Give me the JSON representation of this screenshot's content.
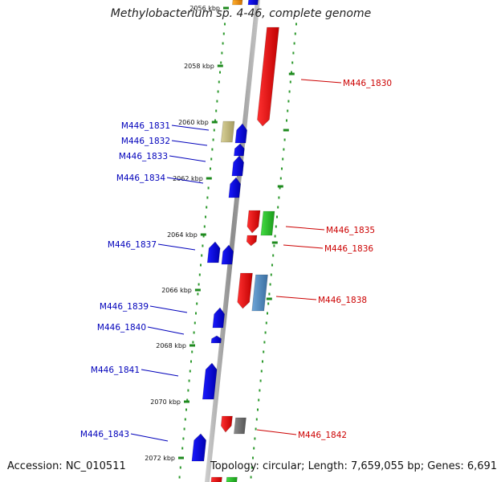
{
  "title": "Methylobacterium sp. 4-46, complete genome",
  "footer": {
    "accession": "Accession: NC_010511",
    "stats": "Topology: circular; Length: 7,659,055 bp; Genes: 6,691"
  },
  "colors": {
    "backbone": "#9e9e9e",
    "tick_dots": "#2e9a2e",
    "forward_label": "#cc0000",
    "reverse_label": "#0000bb"
  },
  "ticks": [
    "2056 kbp",
    "2058 kbp",
    "2060 kbp",
    "2062 kbp",
    "2064 kbp",
    "2066 kbp",
    "2068 kbp",
    "2070 kbp",
    "2072 kbp"
  ],
  "genes": [
    {
      "id": "M446_1830",
      "strand": "+"
    },
    {
      "id": "M446_1831",
      "strand": "-"
    },
    {
      "id": "M446_1832",
      "strand": "-"
    },
    {
      "id": "M446_1833",
      "strand": "-"
    },
    {
      "id": "M446_1834",
      "strand": "-"
    },
    {
      "id": "M446_1835",
      "strand": "+"
    },
    {
      "id": "M446_1836",
      "strand": "+"
    },
    {
      "id": "M446_1837",
      "strand": "-"
    },
    {
      "id": "M446_1838",
      "strand": "+"
    },
    {
      "id": "M446_1839",
      "strand": "-"
    },
    {
      "id": "M446_1840",
      "strand": "-"
    },
    {
      "id": "M446_1841",
      "strand": "-"
    },
    {
      "id": "M446_1842",
      "strand": "+"
    },
    {
      "id": "M446_1843",
      "strand": "-"
    }
  ]
}
